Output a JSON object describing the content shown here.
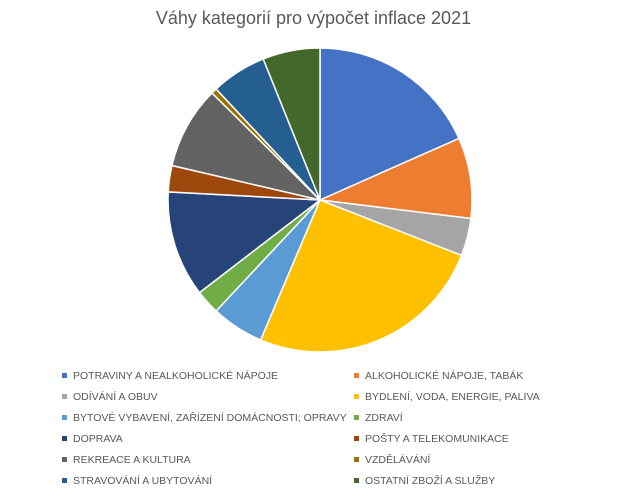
{
  "chart_data": {
    "type": "pie",
    "title": "Váhy kategorií pro výpočet inflace 2021",
    "legend_position": "bottom",
    "categories": [
      "POTRAVINY A NEALKOHOLICKÉ NÁPOJE",
      "ALKOHOLICKÉ NÁPOJE, TABÁK",
      "ODÍVÁNÍ A OBUV",
      "BYDLENÍ, VODA, ENERGIE, PALIVA",
      "BYTOVÉ VYBAVENÍ, ZAŘÍZENÍ DOMÁCNOSTI; OPRAVY",
      "ZDRAVÍ",
      "DOPRAVA",
      "POŠTY A TELEKOMUNIKACE",
      "REKREACE A KULTURA",
      "VZDĚLÁVÁNÍ",
      "STRAVOVÁNÍ A UBYTOVÁNÍ",
      "OSTATNÍ ZBOŽÍ A SLUŽBY"
    ],
    "values": [
      18.4,
      8.6,
      4.0,
      25.5,
      5.6,
      2.6,
      11.3,
      2.8,
      8.8,
      0.6,
      5.9,
      6.1
    ],
    "colors": [
      "#4472C4",
      "#ED7D31",
      "#A5A5A5",
      "#FFC000",
      "#5B9BD5",
      "#70AD47",
      "#264478",
      "#9E480E",
      "#636363",
      "#997300",
      "#255E91",
      "#43682B"
    ]
  }
}
